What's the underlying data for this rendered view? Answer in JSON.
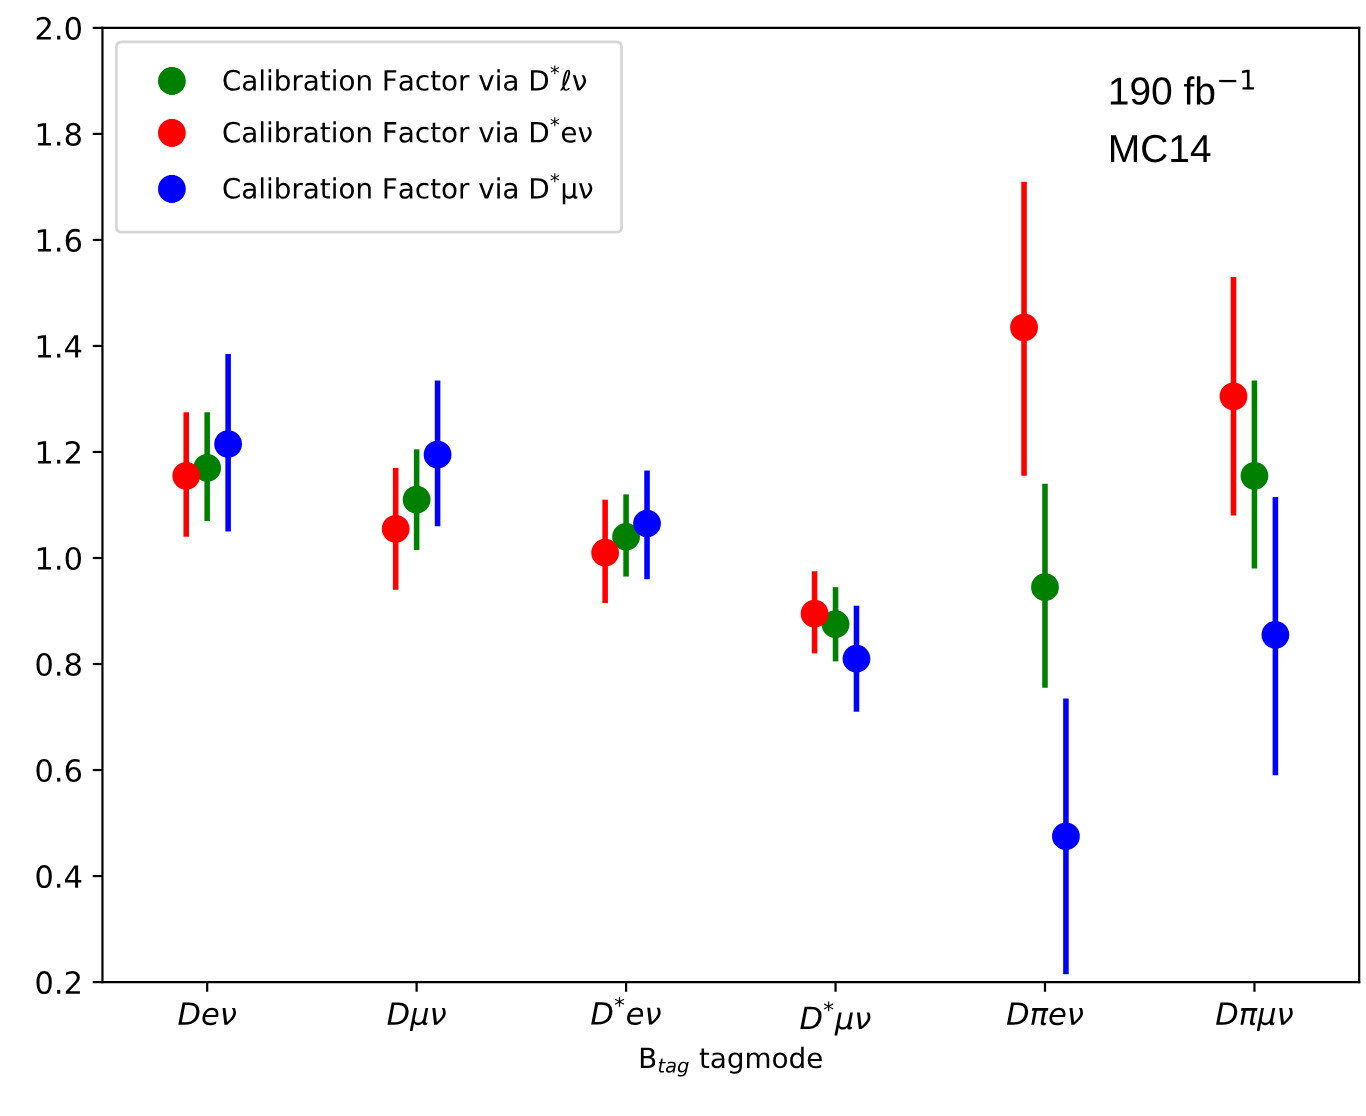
{
  "chart_data": {
    "type": "scatter",
    "xlabel": "B$_{tag}$ tagmode",
    "categories": [
      "Deν",
      "Dμν",
      "D$^{*}$eν",
      "D$^{*}$μν",
      "Dπeν",
      "Dπμν"
    ],
    "series": [
      {
        "name": "Calibration Factor via D$^{*}$ℓν",
        "color": "#008000",
        "values": [
          1.17,
          1.11,
          1.04,
          0.875,
          0.945,
          1.155
        ],
        "errors": [
          [
            1.07,
            1.275
          ],
          [
            1.015,
            1.205
          ],
          [
            0.965,
            1.12
          ],
          [
            0.805,
            0.945
          ],
          [
            0.755,
            1.14
          ],
          [
            0.98,
            1.335
          ]
        ]
      },
      {
        "name": "Calibration Factor via D$^{*}$eν",
        "color": "#ff0000",
        "values": [
          1.155,
          1.055,
          1.01,
          0.895,
          1.435,
          1.305
        ],
        "errors": [
          [
            1.04,
            1.275
          ],
          [
            0.94,
            1.17
          ],
          [
            0.915,
            1.11
          ],
          [
            0.82,
            0.975
          ],
          [
            1.155,
            1.71
          ],
          [
            1.08,
            1.53
          ]
        ]
      },
      {
        "name": "Calibration Factor via D$^{*}$μν",
        "color": "#0000ff",
        "values": [
          1.215,
          1.195,
          1.065,
          0.81,
          0.475,
          0.855
        ],
        "errors": [
          [
            1.05,
            1.385
          ],
          [
            1.06,
            1.335
          ],
          [
            0.96,
            1.165
          ],
          [
            0.71,
            0.91
          ],
          [
            0.215,
            0.735
          ],
          [
            0.59,
            1.115
          ]
        ]
      }
    ],
    "ylim": [
      0.2,
      2.0
    ],
    "yticks": [
      0.2,
      0.4,
      0.6,
      0.8,
      {
        "value": 1,
        "label": "1.0"
      },
      1.2,
      1.4,
      1.6,
      1.8,
      {
        "value": 2,
        "label": "2.0"
      }
    ],
    "annotations": [
      "190 fb$^{−1}$",
      "MC14"
    ],
    "marker": "circle",
    "legend": "top left",
    "grid": false
  }
}
